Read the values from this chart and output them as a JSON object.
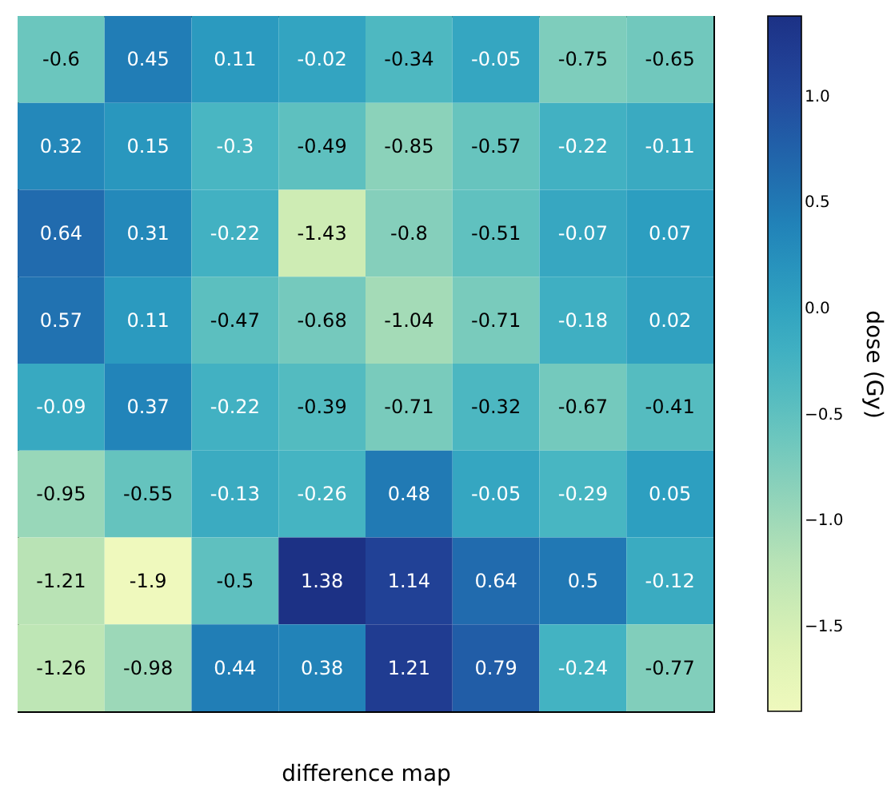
{
  "chart_data": {
    "type": "heatmap",
    "xlabel": "difference map",
    "clabel": "dose (Gy)",
    "categories": [
      null,
      null,
      null,
      null,
      null,
      null,
      null,
      null
    ],
    "y_categories": [
      null,
      null,
      null,
      null,
      null,
      null,
      null,
      null
    ],
    "cells": [
      [
        -0.6,
        0.45,
        0.11,
        -0.02,
        -0.34,
        -0.05,
        -0.75,
        -0.65
      ],
      [
        0.32,
        0.15,
        -0.3,
        -0.49,
        -0.85,
        -0.57,
        -0.22,
        -0.11
      ],
      [
        0.64,
        0.31,
        -0.22,
        -1.43,
        -0.8,
        -0.51,
        -0.07,
        0.07
      ],
      [
        0.57,
        0.11,
        -0.47,
        -0.68,
        -1.04,
        -0.71,
        -0.18,
        0.02
      ],
      [
        -0.09,
        0.37,
        -0.22,
        -0.39,
        -0.71,
        -0.32,
        -0.67,
        -0.41
      ],
      [
        -0.95,
        -0.55,
        -0.13,
        -0.26,
        0.48,
        -0.05,
        -0.29,
        0.05
      ],
      [
        -1.21,
        -1.9,
        -0.5,
        1.38,
        1.14,
        0.64,
        0.5,
        -0.12
      ],
      [
        -1.26,
        -0.98,
        0.44,
        0.38,
        1.21,
        0.79,
        -0.24,
        -0.77
      ]
    ],
    "clim": [
      -1.9,
      1.38
    ],
    "cticks": [
      {
        "value": -1.5,
        "label": "−1.5"
      },
      {
        "value": -1,
        "label": "−1.0"
      },
      {
        "value": -0.5,
        "label": "−0.5"
      },
      {
        "value": 0,
        "label": "0.0"
      },
      {
        "value": 0.5,
        "label": "0.5"
      },
      {
        "value": 1,
        "label": "1.0"
      }
    ],
    "data_labels": true
  }
}
